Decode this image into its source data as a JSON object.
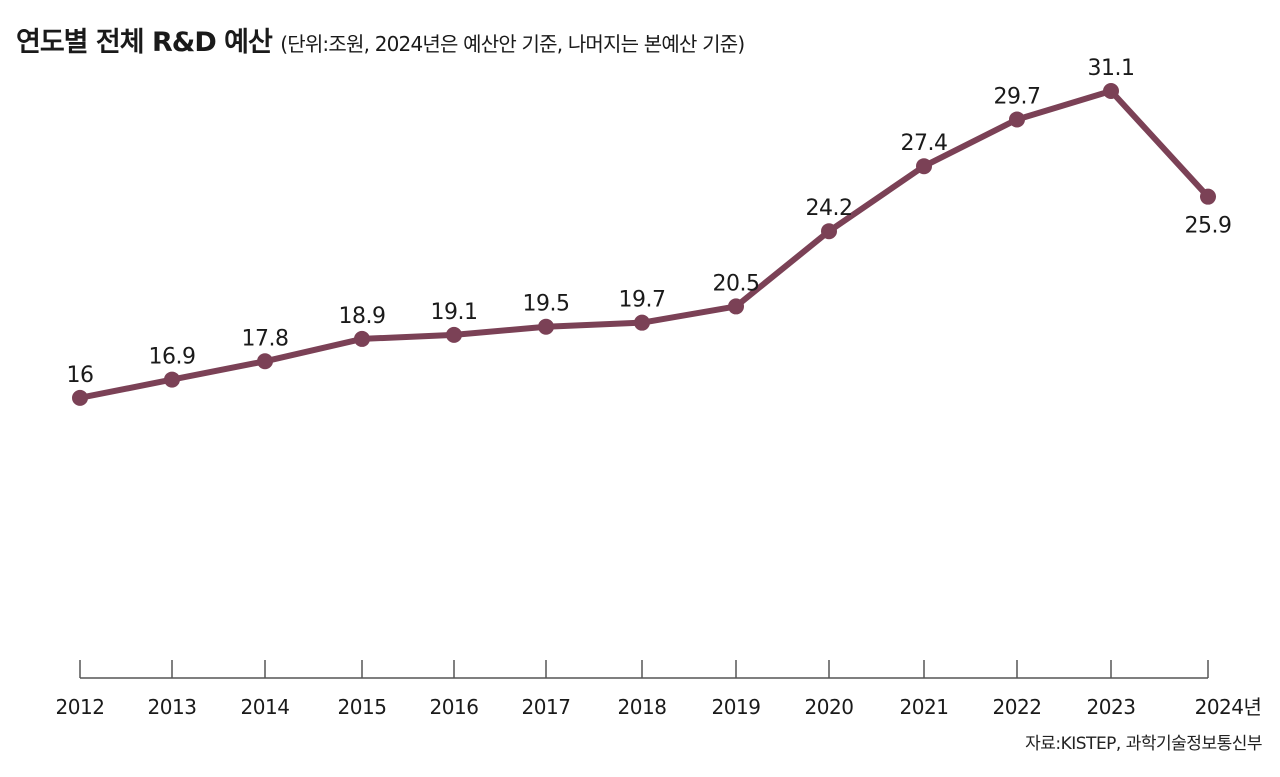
{
  "chart_data": {
    "type": "line",
    "title": "연도별 전체 R&D 예산",
    "subtitle": "(단위:조원, 2024년은 예산안 기준, 나머지는 본예산 기준)",
    "categories": [
      "2012",
      "2013",
      "2014",
      "2015",
      "2016",
      "2017",
      "2018",
      "2019",
      "2020",
      "2021",
      "2022",
      "2023",
      "2024년"
    ],
    "series": [
      {
        "name": "전체 R&D 예산",
        "values": [
          16,
          16.9,
          17.8,
          18.9,
          19.1,
          19.5,
          19.7,
          20.5,
          24.2,
          27.4,
          29.7,
          31.1,
          25.9
        ]
      }
    ],
    "data_labels": [
      "16",
      "16.9",
      "17.8",
      "18.9",
      "19.1",
      "19.5",
      "19.7",
      "20.5",
      "24.2",
      "27.4",
      "29.7",
      "31.1",
      "25.9"
    ],
    "xlabel": "",
    "ylabel": "",
    "ylim": [
      3.1,
      31.1
    ],
    "grid": false,
    "line_color": "#7b4156",
    "source": "자료:KISTEP, 과학기술정보통신부"
  }
}
